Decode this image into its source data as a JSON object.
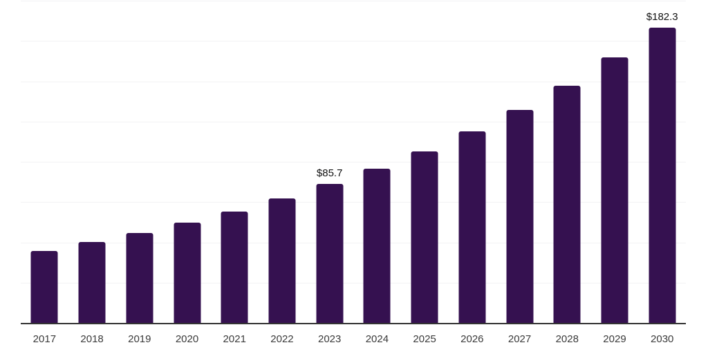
{
  "chart_data": {
    "type": "bar",
    "title": "",
    "categories": [
      "2017",
      "2018",
      "2019",
      "2020",
      "2021",
      "2022",
      "2023",
      "2024",
      "2025",
      "2026",
      "2027",
      "2028",
      "2029",
      "2030"
    ],
    "values": [
      44.3,
      49.9,
      55.5,
      61.9,
      68.8,
      76.9,
      85.7,
      95.3,
      106.2,
      118.3,
      131.5,
      146.6,
      164.0,
      182.3
    ],
    "data_labels": [
      "",
      "",
      "",
      "",
      "",
      "",
      "$85.7",
      "",
      "",
      "",
      "",
      "",
      "",
      "$182.3"
    ],
    "xlabel": "",
    "ylabel": "",
    "ylim": [
      0,
      200
    ],
    "gridline_step": 25,
    "grid": true,
    "legend_position": "none",
    "colors": {
      "bar": "#351150",
      "axis": "#333333",
      "gridline": "#f2f2f4",
      "tick_label": "#3a3a3a",
      "data_label": "#111111",
      "background": "#ffffff"
    }
  }
}
